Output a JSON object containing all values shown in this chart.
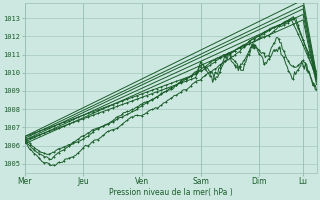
{
  "background_color": "#cce8e0",
  "plot_bg_color": "#cce8e0",
  "grid_color": "#9bbfb5",
  "line_color": "#1a5c2a",
  "ylabel_text": "Pression niveau de la mer( hPa )",
  "x_tick_labels": [
    "Mer",
    "Jeu",
    "Ven",
    "Sam",
    "Dim",
    "Lu"
  ],
  "x_tick_positions": [
    0,
    48,
    96,
    144,
    192,
    228
  ],
  "ylim": [
    1004.5,
    1013.8
  ],
  "yticks": [
    1005,
    1006,
    1007,
    1008,
    1009,
    1010,
    1011,
    1012,
    1013
  ],
  "n_points": 240
}
